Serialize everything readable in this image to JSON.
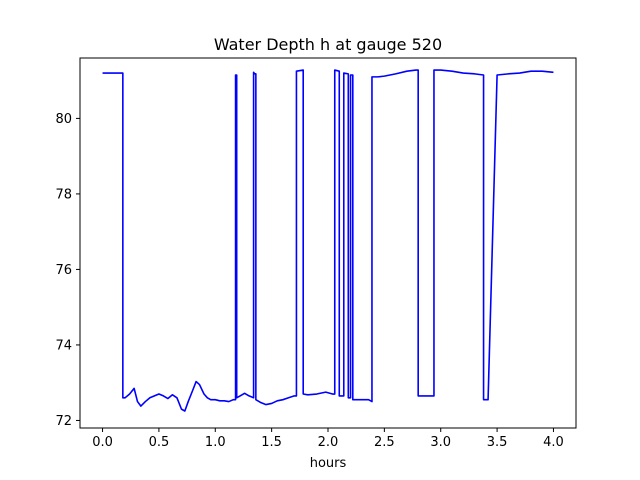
{
  "chart_data": {
    "type": "line",
    "title": "Water Depth h at gauge 520",
    "xlabel": "hours",
    "ylabel": "",
    "xlim": [
      -0.2,
      4.2
    ],
    "ylim": [
      71.8,
      81.6
    ],
    "xticks": [
      0.0,
      0.5,
      1.0,
      1.5,
      2.0,
      2.5,
      3.0,
      3.5,
      4.0
    ],
    "xtick_labels": [
      "0.0",
      "0.5",
      "1.0",
      "1.5",
      "2.0",
      "2.5",
      "3.0",
      "3.5",
      "4.0"
    ],
    "yticks": [
      72,
      74,
      76,
      78,
      80
    ],
    "ytick_labels": [
      "72",
      "74",
      "76",
      "78",
      "80"
    ],
    "grid": false,
    "series": [
      {
        "color": "#0000ff",
        "x": [
          0.0,
          0.18,
          0.18,
          0.2,
          0.24,
          0.28,
          0.31,
          0.34,
          0.38,
          0.42,
          0.46,
          0.5,
          0.54,
          0.58,
          0.62,
          0.66,
          0.7,
          0.73,
          0.76,
          0.8,
          0.83,
          0.86,
          0.9,
          0.93,
          0.96,
          1.0,
          1.04,
          1.08,
          1.12,
          1.16,
          1.18,
          1.18,
          1.19,
          1.19,
          1.22,
          1.26,
          1.3,
          1.34,
          1.34,
          1.35,
          1.36,
          1.36,
          1.4,
          1.45,
          1.5,
          1.55,
          1.6,
          1.65,
          1.7,
          1.72,
          1.72,
          1.78,
          1.78,
          1.82,
          1.9,
          1.98,
          2.04,
          2.06,
          2.06,
          2.1,
          2.1,
          2.14,
          2.14,
          2.18,
          2.18,
          2.2,
          2.2,
          2.22,
          2.22,
          2.26,
          2.3,
          2.36,
          2.39,
          2.39,
          2.44,
          2.5,
          2.6,
          2.7,
          2.78,
          2.8,
          2.8,
          2.86,
          2.94,
          2.94,
          3.0,
          3.1,
          3.2,
          3.3,
          3.38,
          3.38,
          3.42,
          3.5,
          3.6,
          3.7,
          3.8,
          3.9,
          4.0
        ],
        "y": [
          81.2,
          81.2,
          72.6,
          72.6,
          72.7,
          72.85,
          72.5,
          72.38,
          72.5,
          72.6,
          72.65,
          72.7,
          72.65,
          72.58,
          72.68,
          72.6,
          72.3,
          72.25,
          72.5,
          72.8,
          73.03,
          72.95,
          72.7,
          72.6,
          72.55,
          72.55,
          72.52,
          72.52,
          72.5,
          72.55,
          72.55,
          81.15,
          81.15,
          72.6,
          72.65,
          72.72,
          72.65,
          72.6,
          81.22,
          81.18,
          81.18,
          72.55,
          72.48,
          72.42,
          72.45,
          72.52,
          72.55,
          72.6,
          72.65,
          72.65,
          81.25,
          81.28,
          72.7,
          72.68,
          72.7,
          72.75,
          72.7,
          72.7,
          81.28,
          81.25,
          72.65,
          72.65,
          81.2,
          81.18,
          72.6,
          72.6,
          81.15,
          81.15,
          72.55,
          72.55,
          72.55,
          72.55,
          72.5,
          81.1,
          81.1,
          81.12,
          81.18,
          81.25,
          81.28,
          81.28,
          72.65,
          72.65,
          72.65,
          81.28,
          81.28,
          81.25,
          81.2,
          81.18,
          81.15,
          72.55,
          72.55,
          81.15,
          81.18,
          81.2,
          81.25,
          81.25,
          81.22
        ]
      }
    ]
  }
}
